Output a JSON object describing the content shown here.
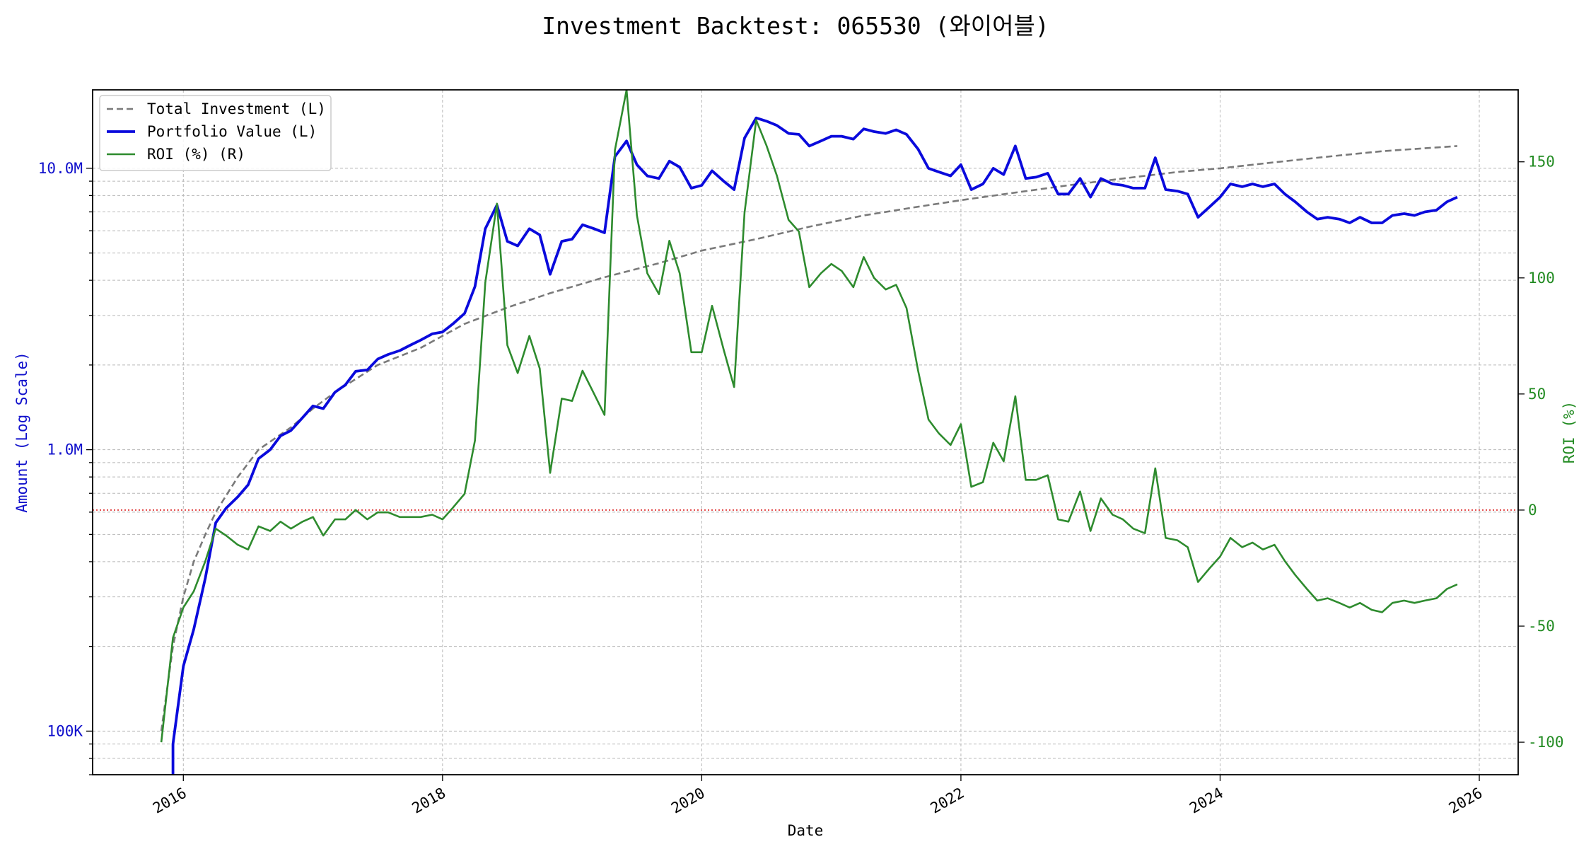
{
  "chart_data": {
    "type": "line",
    "title": "Investment Backtest: 065530 (와이어블)",
    "xlabel": "Date",
    "ylabel_left": "Amount (Log Scale)",
    "ylabel_right": "ROI (%)",
    "x_range": [
      2015.3,
      2026.3
    ],
    "x_ticks": [
      "2016",
      "2018",
      "2020",
      "2022",
      "2024",
      "2026"
    ],
    "y_left_scale": "log",
    "y_left_range": [
      70000,
      19000000
    ],
    "y_left_ticks": [
      {
        "value": 100000,
        "label": "100K"
      },
      {
        "value": 1000000,
        "label": "1.0M"
      },
      {
        "value": 10000000,
        "label": "10.0M"
      }
    ],
    "y_right_range": [
      -114,
      181
    ],
    "y_right_ticks": [
      -100,
      -50,
      0,
      50,
      100,
      150
    ],
    "zero_line": {
      "axis": "right",
      "value": 0,
      "color": "#dd2222"
    },
    "grid": true,
    "legend_position": "top-left",
    "series": [
      {
        "name": "Total Investment (L)",
        "axis": "left",
        "color": "#7a7a7a",
        "style": "dashed",
        "points": [
          [
            2015.83,
            100000
          ],
          [
            2015.92,
            200000
          ],
          [
            2016.0,
            300000
          ],
          [
            2016.08,
            400000
          ],
          [
            2016.17,
            500000
          ],
          [
            2016.25,
            600000
          ],
          [
            2016.42,
            800000
          ],
          [
            2016.58,
            1000000
          ],
          [
            2016.83,
            1200000
          ],
          [
            2017.0,
            1400000
          ],
          [
            2017.17,
            1600000
          ],
          [
            2017.5,
            2000000
          ],
          [
            2017.83,
            2300000
          ],
          [
            2018.17,
            2800000
          ],
          [
            2018.5,
            3200000
          ],
          [
            2018.83,
            3600000
          ],
          [
            2019.25,
            4100000
          ],
          [
            2019.67,
            4600000
          ],
          [
            2020.0,
            5100000
          ],
          [
            2020.42,
            5600000
          ],
          [
            2020.83,
            6200000
          ],
          [
            2021.25,
            6800000
          ],
          [
            2021.67,
            7300000
          ],
          [
            2022.0,
            7700000
          ],
          [
            2022.42,
            8200000
          ],
          [
            2022.83,
            8700000
          ],
          [
            2023.25,
            9200000
          ],
          [
            2023.67,
            9700000
          ],
          [
            2024.0,
            10000000
          ],
          [
            2024.42,
            10500000
          ],
          [
            2024.83,
            11000000
          ],
          [
            2025.25,
            11500000
          ],
          [
            2025.83,
            12000000
          ]
        ]
      },
      {
        "name": "Portfolio Value (L)",
        "axis": "left",
        "color": "#0a0adc",
        "style": "solid",
        "points": [
          [
            2015.92,
            70000
          ],
          [
            2015.92,
            90000
          ],
          [
            2016.0,
            170000
          ],
          [
            2016.08,
            230000
          ],
          [
            2016.17,
            350000
          ],
          [
            2016.25,
            550000
          ],
          [
            2016.33,
            620000
          ],
          [
            2016.42,
            680000
          ],
          [
            2016.5,
            750000
          ],
          [
            2016.58,
            930000
          ],
          [
            2016.67,
            1000000
          ],
          [
            2016.75,
            1120000
          ],
          [
            2016.83,
            1170000
          ],
          [
            2016.92,
            1300000
          ],
          [
            2017.0,
            1430000
          ],
          [
            2017.08,
            1400000
          ],
          [
            2017.17,
            1600000
          ],
          [
            2017.25,
            1700000
          ],
          [
            2017.33,
            1900000
          ],
          [
            2017.42,
            1920000
          ],
          [
            2017.5,
            2100000
          ],
          [
            2017.58,
            2180000
          ],
          [
            2017.67,
            2250000
          ],
          [
            2017.75,
            2350000
          ],
          [
            2017.83,
            2450000
          ],
          [
            2017.92,
            2580000
          ],
          [
            2018.0,
            2620000
          ],
          [
            2018.08,
            2800000
          ],
          [
            2018.17,
            3050000
          ],
          [
            2018.25,
            3800000
          ],
          [
            2018.33,
            6100000
          ],
          [
            2018.42,
            7400000
          ],
          [
            2018.5,
            5500000
          ],
          [
            2018.58,
            5300000
          ],
          [
            2018.67,
            6100000
          ],
          [
            2018.75,
            5800000
          ],
          [
            2018.83,
            4200000
          ],
          [
            2018.92,
            5500000
          ],
          [
            2019.0,
            5600000
          ],
          [
            2019.08,
            6300000
          ],
          [
            2019.17,
            6100000
          ],
          [
            2019.25,
            5900000
          ],
          [
            2019.33,
            11000000
          ],
          [
            2019.42,
            12500000
          ],
          [
            2019.5,
            10300000
          ],
          [
            2019.58,
            9400000
          ],
          [
            2019.67,
            9200000
          ],
          [
            2019.75,
            10600000
          ],
          [
            2019.83,
            10100000
          ],
          [
            2019.92,
            8500000
          ],
          [
            2020.0,
            8700000
          ],
          [
            2020.08,
            9800000
          ],
          [
            2020.17,
            9000000
          ],
          [
            2020.25,
            8400000
          ],
          [
            2020.33,
            12800000
          ],
          [
            2020.42,
            15100000
          ],
          [
            2020.5,
            14700000
          ],
          [
            2020.58,
            14200000
          ],
          [
            2020.67,
            13300000
          ],
          [
            2020.75,
            13200000
          ],
          [
            2020.83,
            12000000
          ],
          [
            2020.92,
            12500000
          ],
          [
            2021.0,
            13000000
          ],
          [
            2021.08,
            13000000
          ],
          [
            2021.17,
            12700000
          ],
          [
            2021.25,
            13800000
          ],
          [
            2021.33,
            13500000
          ],
          [
            2021.42,
            13300000
          ],
          [
            2021.5,
            13700000
          ],
          [
            2021.58,
            13200000
          ],
          [
            2021.67,
            11700000
          ],
          [
            2021.75,
            10000000
          ],
          [
            2021.83,
            9700000
          ],
          [
            2021.92,
            9400000
          ],
          [
            2022.0,
            10300000
          ],
          [
            2022.08,
            8400000
          ],
          [
            2022.17,
            8800000
          ],
          [
            2022.25,
            10000000
          ],
          [
            2022.33,
            9500000
          ],
          [
            2022.42,
            12000000
          ],
          [
            2022.5,
            9200000
          ],
          [
            2022.58,
            9300000
          ],
          [
            2022.67,
            9600000
          ],
          [
            2022.75,
            8100000
          ],
          [
            2022.83,
            8100000
          ],
          [
            2022.92,
            9200000
          ],
          [
            2023.0,
            7900000
          ],
          [
            2023.08,
            9200000
          ],
          [
            2023.17,
            8800000
          ],
          [
            2023.25,
            8700000
          ],
          [
            2023.33,
            8500000
          ],
          [
            2023.42,
            8500000
          ],
          [
            2023.5,
            10900000
          ],
          [
            2023.58,
            8400000
          ],
          [
            2023.67,
            8300000
          ],
          [
            2023.75,
            8100000
          ],
          [
            2023.83,
            6700000
          ],
          [
            2023.92,
            7300000
          ],
          [
            2024.0,
            7900000
          ],
          [
            2024.08,
            8800000
          ],
          [
            2024.17,
            8600000
          ],
          [
            2024.25,
            8800000
          ],
          [
            2024.33,
            8600000
          ],
          [
            2024.42,
            8800000
          ],
          [
            2024.5,
            8100000
          ],
          [
            2024.58,
            7600000
          ],
          [
            2024.67,
            7000000
          ],
          [
            2024.75,
            6600000
          ],
          [
            2024.83,
            6700000
          ],
          [
            2024.92,
            6600000
          ],
          [
            2025.0,
            6400000
          ],
          [
            2025.08,
            6700000
          ],
          [
            2025.17,
            6400000
          ],
          [
            2025.25,
            6400000
          ],
          [
            2025.33,
            6800000
          ],
          [
            2025.42,
            6900000
          ],
          [
            2025.5,
            6800000
          ],
          [
            2025.58,
            7000000
          ],
          [
            2025.67,
            7100000
          ],
          [
            2025.75,
            7600000
          ],
          [
            2025.83,
            7900000
          ]
        ]
      },
      {
        "name": "ROI (%) (R)",
        "axis": "right",
        "color": "#2e8b2e",
        "style": "solid",
        "points": [
          [
            2015.83,
            -100
          ],
          [
            2015.92,
            -55
          ],
          [
            2016.0,
            -42
          ],
          [
            2016.08,
            -35
          ],
          [
            2016.17,
            -22
          ],
          [
            2016.25,
            -8
          ],
          [
            2016.33,
            -11
          ],
          [
            2016.42,
            -15
          ],
          [
            2016.5,
            -17
          ],
          [
            2016.58,
            -7
          ],
          [
            2016.67,
            -9
          ],
          [
            2016.75,
            -5
          ],
          [
            2016.83,
            -8
          ],
          [
            2016.92,
            -5
          ],
          [
            2017.0,
            -3
          ],
          [
            2017.08,
            -11
          ],
          [
            2017.17,
            -4
          ],
          [
            2017.25,
            -4
          ],
          [
            2017.33,
            0
          ],
          [
            2017.42,
            -4
          ],
          [
            2017.5,
            -1
          ],
          [
            2017.58,
            -1
          ],
          [
            2017.67,
            -3
          ],
          [
            2017.75,
            -3
          ],
          [
            2017.83,
            -3
          ],
          [
            2017.92,
            -2
          ],
          [
            2018.0,
            -4
          ],
          [
            2018.08,
            1
          ],
          [
            2018.17,
            7
          ],
          [
            2018.25,
            30
          ],
          [
            2018.33,
            98
          ],
          [
            2018.42,
            132
          ],
          [
            2018.5,
            71
          ],
          [
            2018.58,
            59
          ],
          [
            2018.67,
            75
          ],
          [
            2018.75,
            61
          ],
          [
            2018.83,
            16
          ],
          [
            2018.92,
            48
          ],
          [
            2019.0,
            47
          ],
          [
            2019.08,
            60
          ],
          [
            2019.17,
            50
          ],
          [
            2019.25,
            41
          ],
          [
            2019.33,
            155
          ],
          [
            2019.42,
            181
          ],
          [
            2019.5,
            127
          ],
          [
            2019.58,
            102
          ],
          [
            2019.67,
            93
          ],
          [
            2019.75,
            116
          ],
          [
            2019.83,
            102
          ],
          [
            2019.92,
            68
          ],
          [
            2020.0,
            68
          ],
          [
            2020.08,
            88
          ],
          [
            2020.17,
            69
          ],
          [
            2020.25,
            53
          ],
          [
            2020.33,
            128
          ],
          [
            2020.42,
            168
          ],
          [
            2020.5,
            157
          ],
          [
            2020.58,
            144
          ],
          [
            2020.67,
            125
          ],
          [
            2020.75,
            120
          ],
          [
            2020.83,
            96
          ],
          [
            2020.92,
            102
          ],
          [
            2021.0,
            106
          ],
          [
            2021.08,
            103
          ],
          [
            2021.17,
            96
          ],
          [
            2021.25,
            109
          ],
          [
            2021.33,
            100
          ],
          [
            2021.42,
            95
          ],
          [
            2021.5,
            97
          ],
          [
            2021.58,
            87
          ],
          [
            2021.67,
            60
          ],
          [
            2021.75,
            39
          ],
          [
            2021.83,
            33
          ],
          [
            2021.92,
            28
          ],
          [
            2022.0,
            37
          ],
          [
            2022.08,
            10
          ],
          [
            2022.17,
            12
          ],
          [
            2022.25,
            29
          ],
          [
            2022.33,
            21
          ],
          [
            2022.42,
            49
          ],
          [
            2022.5,
            13
          ],
          [
            2022.58,
            13
          ],
          [
            2022.67,
            15
          ],
          [
            2022.75,
            -4
          ],
          [
            2022.83,
            -5
          ],
          [
            2022.92,
            8
          ],
          [
            2023.0,
            -9
          ],
          [
            2023.08,
            5
          ],
          [
            2023.17,
            -2
          ],
          [
            2023.25,
            -4
          ],
          [
            2023.33,
            -8
          ],
          [
            2023.42,
            -10
          ],
          [
            2023.5,
            18
          ],
          [
            2023.58,
            -12
          ],
          [
            2023.67,
            -13
          ],
          [
            2023.75,
            -16
          ],
          [
            2023.83,
            -31
          ],
          [
            2023.92,
            -25
          ],
          [
            2024.0,
            -20
          ],
          [
            2024.08,
            -12
          ],
          [
            2024.17,
            -16
          ],
          [
            2024.25,
            -14
          ],
          [
            2024.33,
            -17
          ],
          [
            2024.42,
            -15
          ],
          [
            2024.5,
            -22
          ],
          [
            2024.58,
            -28
          ],
          [
            2024.67,
            -34
          ],
          [
            2024.75,
            -39
          ],
          [
            2024.83,
            -38
          ],
          [
            2024.92,
            -40
          ],
          [
            2025.0,
            -42
          ],
          [
            2025.08,
            -40
          ],
          [
            2025.17,
            -43
          ],
          [
            2025.25,
            -44
          ],
          [
            2025.33,
            -40
          ],
          [
            2025.42,
            -39
          ],
          [
            2025.5,
            -40
          ],
          [
            2025.58,
            -39
          ],
          [
            2025.67,
            -38
          ],
          [
            2025.75,
            -34
          ],
          [
            2025.83,
            -32
          ]
        ]
      }
    ]
  }
}
